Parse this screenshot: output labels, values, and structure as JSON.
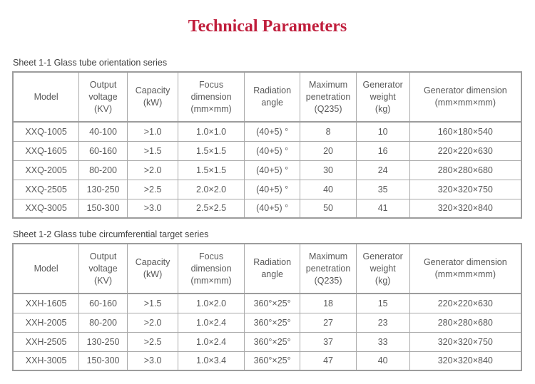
{
  "page": {
    "title": "Technical Parameters"
  },
  "colors": {
    "title": "#c01e3c",
    "outer_border": "#9c9c9c",
    "inner_border": "#aaaaaa",
    "table_text": "#595959",
    "caption_text": "#3f3f3f"
  },
  "tables": [
    {
      "caption": "Sheet 1-1 Glass tube orientation series",
      "headers": [
        "Model",
        "Output\nvoltage\n(KV)",
        "Capacity\n(kW)",
        "Focus\ndimension\n(mm×mm)",
        "Radiation\nangle",
        "Maximum\npenetration\n(Q235)",
        "Generator\nweight\n(kg)",
        "Generator dimension\n(mm×mm×mm)"
      ],
      "rows": [
        [
          "XXQ-1005",
          "40-100",
          ">1.0",
          "1.0×1.0",
          "(40+5) °",
          "8",
          "10",
          "160×180×540"
        ],
        [
          "XXQ-1605",
          "60-160",
          ">1.5",
          "1.5×1.5",
          "(40+5) °",
          "20",
          "16",
          "220×220×630"
        ],
        [
          "XXQ-2005",
          "80-200",
          ">2.0",
          "1.5×1.5",
          "(40+5) °",
          "30",
          "24",
          "280×280×680"
        ],
        [
          "XXQ-2505",
          "130-250",
          ">2.5",
          "2.0×2.0",
          "(40+5) °",
          "40",
          "35",
          "320×320×750"
        ],
        [
          "XXQ-3005",
          "150-300",
          ">3.0",
          "2.5×2.5",
          "(40+5) °",
          "50",
          "41",
          "320×320×840"
        ]
      ]
    },
    {
      "caption": "Sheet 1-2 Glass tube circumferential target series",
      "headers": [
        "Model",
        "Output\nvoltage\n(KV)",
        "Capacity\n(kW)",
        "Focus\ndimension\n(mm×mm)",
        "Radiation\nangle",
        "Maximum\npenetration\n(Q235)",
        "Generator\nweight\n(kg)",
        "Generator dimension\n(mm×mm×mm)"
      ],
      "rows": [
        [
          "XXH-1605",
          "60-160",
          ">1.5",
          "1.0×2.0",
          "360°×25°",
          "18",
          "15",
          "220×220×630"
        ],
        [
          "XXH-2005",
          "80-200",
          ">2.0",
          "1.0×2.4",
          "360°×25°",
          "27",
          "23",
          "280×280×680"
        ],
        [
          "XXH-2505",
          "130-250",
          ">2.5",
          "1.0×2.4",
          "360°×25°",
          "37",
          "33",
          "320×320×750"
        ],
        [
          "XXH-3005",
          "150-300",
          ">3.0",
          "1.0×3.4",
          "360°×25°",
          "47",
          "40",
          "320×320×840"
        ]
      ]
    }
  ]
}
